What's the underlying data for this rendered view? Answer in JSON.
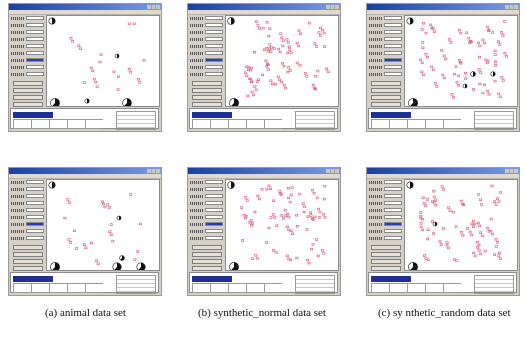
{
  "captions": {
    "a": "(a) animal data set",
    "b": "(b) synthetic_normal data set",
    "c": "(c) sy nthetic_random data set"
  },
  "colors": {
    "title_bar": "#1c3f9e",
    "window_face": "#d4d0c8",
    "canvas": "#ffffff",
    "cluster_marks": "#e0506a",
    "pie_dark": "#111111",
    "selection_blue": "#1f2f98"
  }
}
